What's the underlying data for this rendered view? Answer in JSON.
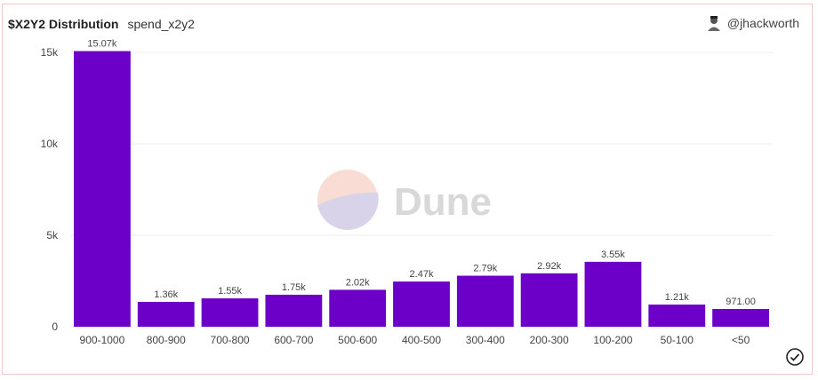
{
  "header": {
    "title": "$X2Y2 Distribution",
    "subtitle": "spend_x2y2",
    "author": "@jhackworth"
  },
  "watermark": {
    "text": "Dune"
  },
  "colors": {
    "bar": "#6c00c9",
    "grid": "#eeeeee",
    "axis_text": "#444444"
  },
  "chart_data": {
    "type": "bar",
    "title": "$X2Y2 Distribution",
    "subtitle": "spend_x2y2",
    "categories": [
      "900-1000",
      "800-900",
      "700-800",
      "600-700",
      "500-600",
      "400-500",
      "300-400",
      "200-300",
      "100-200",
      "50-100",
      "<50"
    ],
    "values": [
      15070,
      1360,
      1550,
      1750,
      2020,
      2470,
      2790,
      2920,
      3550,
      1210,
      971
    ],
    "data_labels": [
      "15.07k",
      "1.36k",
      "1.55k",
      "1.75k",
      "2.02k",
      "2.47k",
      "2.79k",
      "2.92k",
      "3.55k",
      "1.21k",
      "971.00"
    ],
    "ylim": [
      0,
      15000
    ],
    "yticks": [
      0,
      5000,
      10000,
      15000
    ],
    "ytick_labels": [
      "0",
      "5k",
      "10k",
      "15k"
    ],
    "xlabel": "",
    "ylabel": "",
    "grid": true
  }
}
